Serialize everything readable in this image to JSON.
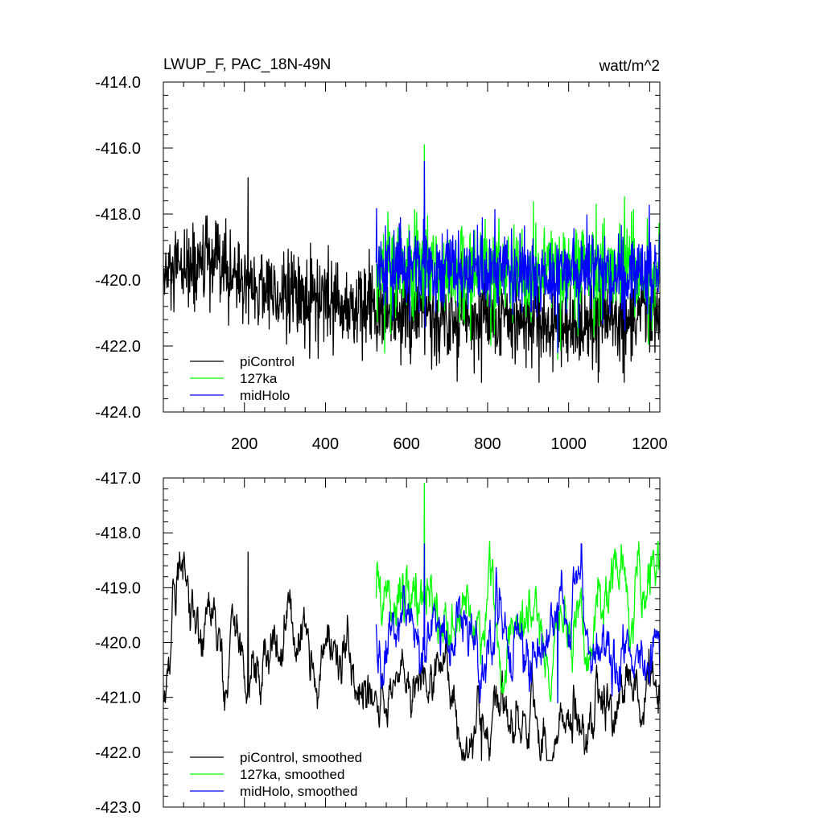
{
  "chart_data": [
    {
      "type": "line",
      "title": "LWUP_F, PAC_18N-49N",
      "units": "watt/m^2",
      "xlabel": "",
      "ylabel": "",
      "xlim": [
        0,
        1225
      ],
      "ylim": [
        -424,
        -414
      ],
      "xticks": [
        200,
        400,
        600,
        800,
        1000,
        1200
      ],
      "yticks": [
        -414,
        -416,
        -418,
        -420,
        -422,
        -424
      ],
      "ytick_labels": [
        "-414.0",
        "-416.0",
        "-418.0",
        "-420.0",
        "-422.0",
        "-424.0"
      ],
      "legend_position": "bottom-left",
      "series": [
        {
          "name": "piControl",
          "color": "#000000",
          "x_start": 1,
          "x_end": 1225,
          "mean": [
            [
              0,
              -420.0
            ],
            [
              100,
              -419.5
            ],
            [
              300,
              -420.5
            ],
            [
              500,
              -420.9
            ],
            [
              800,
              -421.2
            ],
            [
              1000,
              -421.4
            ],
            [
              1225,
              -421.0
            ]
          ],
          "amplitude": 0.9,
          "spike_min": -416.9,
          "spike_max": -423.1
        },
        {
          "name": "127ka",
          "color": "#00ff00",
          "x_start": 525,
          "x_end": 1225,
          "mean": [
            [
              525,
              -419.7
            ],
            [
              1225,
              -419.7
            ]
          ],
          "amplitude": 1.0,
          "spike_min": -415.9,
          "spike_max": -422.4
        },
        {
          "name": "midHolo",
          "color": "#0000ff",
          "x_start": 525,
          "x_end": 1225,
          "mean": [
            [
              525,
              -419.6
            ],
            [
              1225,
              -419.8
            ]
          ],
          "amplitude": 0.8,
          "spike_min": -416.4,
          "spike_max": -422.2
        }
      ]
    },
    {
      "type": "line",
      "title": "",
      "xlabel": "",
      "ylabel": "",
      "xlim": [
        0,
        1225
      ],
      "ylim": [
        -423,
        -417
      ],
      "xticks": [
        200,
        400,
        600,
        800,
        1000,
        1200
      ],
      "yticks": [
        -417,
        -418,
        -419,
        -420,
        -421,
        -422,
        -423
      ],
      "ytick_labels": [
        "-417.0",
        "-418.0",
        "-419.0",
        "-420.0",
        "-421.0",
        "-422.0",
        "-423.0"
      ],
      "legend_position": "bottom-left",
      "series": [
        {
          "name": "piControl, smoothed",
          "color": "#000000",
          "x_start": 1,
          "x_end": 1225,
          "mean": [
            [
              0,
              -420.8
            ],
            [
              60,
              -419.4
            ],
            [
              120,
              -419.8
            ],
            [
              200,
              -420.4
            ],
            [
              350,
              -420.3
            ],
            [
              500,
              -420.9
            ],
            [
              800,
              -421.1
            ],
            [
              1000,
              -421.3
            ],
            [
              1225,
              -421.0
            ]
          ],
          "amplitude": 0.45,
          "spike_min": -418.35,
          "spike_max": -422.15
        },
        {
          "name": "127ka, smoothed",
          "color": "#00ff00",
          "x_start": 525,
          "x_end": 1225,
          "mean": [
            [
              525,
              -419.3
            ],
            [
              700,
              -419.5
            ],
            [
              900,
              -419.9
            ],
            [
              1225,
              -419.1
            ]
          ],
          "amplitude": 0.5,
          "spike_min": -417.1,
          "spike_max": -421.1
        },
        {
          "name": "midHolo, smoothed",
          "color": "#0000ff",
          "x_start": 525,
          "x_end": 1225,
          "mean": [
            [
              525,
              -419.8
            ],
            [
              1225,
              -420.0
            ]
          ],
          "amplitude": 0.5,
          "spike_min": -418.2,
          "spike_max": -421.1
        }
      ]
    }
  ]
}
